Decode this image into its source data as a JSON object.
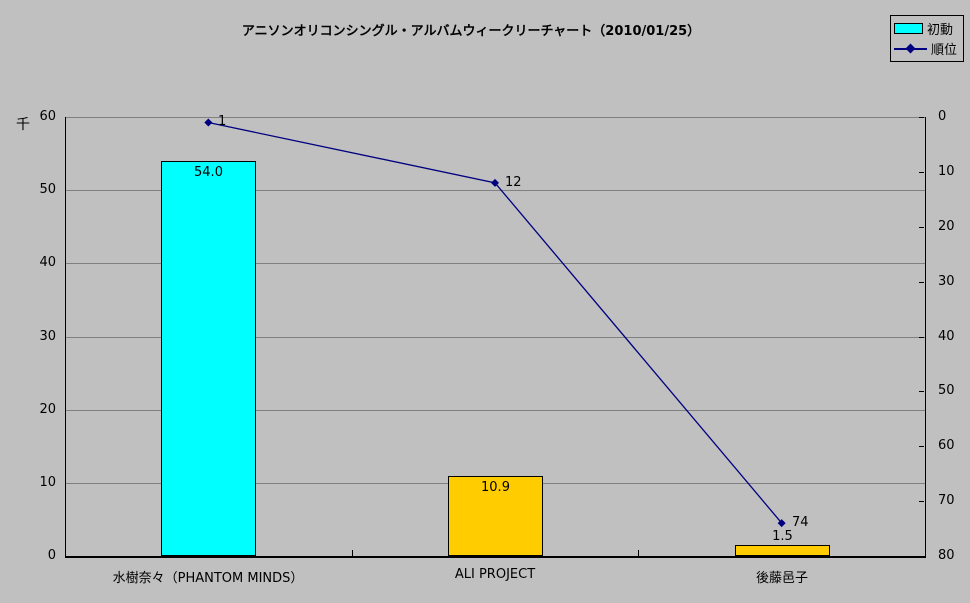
{
  "title": "アニソンオリコンシングル・アルバムウィークリーチャート（2010/01/25）",
  "legend": {
    "position": "top-right",
    "entries": [
      {
        "label": "初動",
        "type": "bar-swatch",
        "color": "#00FFFF"
      },
      {
        "label": "順位",
        "type": "line-marker",
        "color": "#000080"
      }
    ]
  },
  "colors": {
    "background": "#C0C0C0",
    "gridline": "#808080",
    "axis": "#000000"
  },
  "chart_data": {
    "type": "bar",
    "combo": "bar+line",
    "title": "アニソンオリコンシングル・アルバムウィークリーチャート（2010/01/25）",
    "categories": [
      "水樹奈々（PHANTOM MINDS）",
      "ALI PROJECT",
      "後藤邑子"
    ],
    "series": [
      {
        "name": "初動",
        "type": "bar",
        "axis": "left",
        "values": [
          54.0,
          10.9,
          1.5
        ],
        "labels": [
          "54.0",
          "10.9",
          "1.5"
        ],
        "bar_colors": [
          "#00FFFF",
          "#FFCC00",
          "#FFCC00"
        ]
      },
      {
        "name": "順位",
        "type": "line",
        "axis": "right",
        "values": [
          1,
          12,
          74
        ],
        "labels": [
          "1",
          "12",
          "74"
        ],
        "color": "#000080"
      }
    ],
    "left_axis": {
      "unit": "千",
      "min": 0,
      "max": 60,
      "tick_step": 10,
      "tick_labels": [
        "0",
        "10",
        "20",
        "30",
        "40",
        "50",
        "60"
      ]
    },
    "right_axis": {
      "min": 0,
      "max": 80,
      "tick_step": 10,
      "inverted": true,
      "tick_labels": [
        "0",
        "10",
        "20",
        "30",
        "40",
        "50",
        "60",
        "70",
        "80"
      ]
    },
    "grid": true,
    "legend_position": "top-right"
  }
}
